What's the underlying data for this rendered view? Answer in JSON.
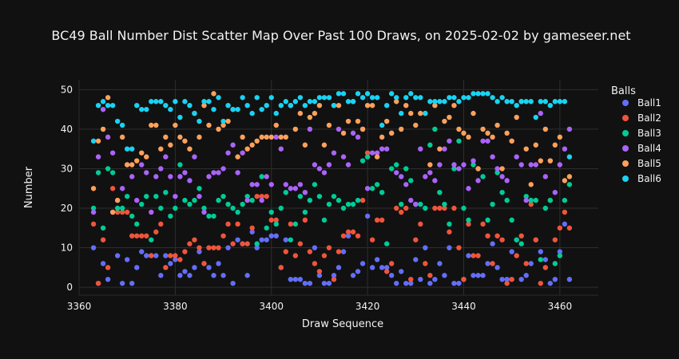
{
  "chart_data": {
    "type": "scatter",
    "title": "BC49 Ball Number Dist Scatter Map Over Past 100 Draws, on 2025-02-02 by gameseer.net",
    "xlabel": "Draw Sequence",
    "ylabel": "Number",
    "xlim": [
      3360,
      3468
    ],
    "ylim": [
      -2,
      52.5
    ],
    "xticks": [
      3360,
      3380,
      3400,
      3420,
      3440,
      3460
    ],
    "yticks": [
      0,
      10,
      20,
      30,
      40,
      50
    ],
    "grid": true,
    "legend_title": "Balls",
    "legend_position": "right",
    "draw_start": 3363,
    "series": [
      {
        "name": "Ball1",
        "color": "#636efa",
        "values": [
          10,
          1,
          6,
          2,
          19,
          8,
          1,
          7,
          1,
          5,
          9,
          8,
          8,
          8,
          3,
          8,
          6,
          7,
          3,
          4,
          3,
          5,
          9,
          6,
          5,
          3,
          6,
          3,
          10,
          1,
          12,
          11,
          3,
          14,
          10,
          12,
          12,
          13,
          13,
          5,
          12,
          2,
          2,
          2,
          1,
          1,
          10,
          3,
          1,
          1,
          3,
          5,
          9,
          13,
          3,
          4,
          6,
          18,
          5,
          7,
          5,
          5,
          3,
          1,
          4,
          1,
          1,
          7,
          2,
          10,
          1,
          2,
          6,
          3,
          10,
          1,
          1,
          2,
          8,
          3,
          3,
          3,
          6,
          11,
          5,
          2,
          2,
          9,
          12,
          2,
          3,
          6,
          12,
          9,
          7,
          1,
          2,
          9,
          16,
          2
        ]
      },
      {
        "name": "Ball2",
        "color": "#ef553b",
        "values": [
          16,
          1,
          12,
          5,
          25,
          19,
          19,
          19,
          13,
          13,
          13,
          13,
          8,
          14,
          16,
          5,
          8,
          8,
          7,
          9,
          11,
          12,
          10,
          6,
          10,
          10,
          10,
          13,
          16,
          11,
          16,
          11,
          11,
          15,
          23,
          23,
          23,
          17,
          17,
          5,
          9,
          16,
          8,
          11,
          17,
          9,
          6,
          4,
          8,
          10,
          2,
          9,
          13,
          14,
          14,
          13,
          22,
          34,
          12,
          17,
          17,
          4,
          6,
          20,
          19,
          20,
          2,
          12,
          16,
          6,
          3,
          20,
          20,
          20,
          14,
          20,
          10,
          2,
          16,
          8,
          8,
          16,
          13,
          6,
          13,
          12,
          1,
          2,
          8,
          13,
          6,
          21,
          12,
          1,
          5,
          22,
          12,
          15,
          19,
          15
        ]
      },
      {
        "name": "Ball3",
        "color": "#00cc96",
        "values": [
          20,
          29,
          15,
          30,
          29,
          20,
          20,
          23,
          18,
          16,
          21,
          23,
          12,
          23,
          20,
          24,
          18,
          20,
          31,
          22,
          21,
          22,
          25,
          20,
          18,
          18,
          22,
          23,
          21,
          20,
          19,
          21,
          23,
          22,
          11,
          28,
          15,
          19,
          16,
          20,
          24,
          12,
          16,
          23,
          19,
          22,
          26,
          23,
          17,
          21,
          23,
          22,
          20,
          21,
          21,
          22,
          32,
          33,
          25,
          26,
          24,
          11,
          30,
          31,
          21,
          30,
          27,
          21,
          21,
          20,
          36,
          40,
          24,
          21,
          16,
          30,
          37,
          20,
          17,
          31,
          30,
          28,
          17,
          21,
          29,
          24,
          22,
          17,
          12,
          11,
          23,
          22,
          22,
          7,
          20,
          22,
          6,
          8,
          22,
          26
        ]
      },
      {
        "name": "Ball4",
        "color": "#ab63fa",
        "values": [
          19,
          33,
          45,
          38,
          34,
          22,
          25,
          31,
          28,
          22,
          31,
          29,
          19,
          28,
          30,
          33,
          28,
          23,
          28,
          29,
          27,
          33,
          23,
          19,
          28,
          29,
          29,
          30,
          34,
          36,
          29,
          34,
          22,
          26,
          26,
          22,
          28,
          26,
          38,
          35,
          26,
          25,
          25,
          26,
          24,
          40,
          31,
          30,
          29,
          31,
          34,
          40,
          33,
          31,
          39,
          38,
          40,
          25,
          34,
          34,
          35,
          35,
          39,
          29,
          28,
          26,
          22,
          21,
          35,
          28,
          29,
          27,
          31,
          35,
          37,
          31,
          30,
          31,
          25,
          32,
          27,
          37,
          37,
          33,
          30,
          28,
          27,
          37,
          33,
          31,
          22,
          31,
          31,
          44,
          28,
          32,
          24,
          31,
          35,
          40
        ]
      },
      {
        "name": "Ball5",
        "color": "#ffa15a",
        "values": [
          25,
          37,
          40,
          48,
          19,
          22,
          38,
          31,
          31,
          32,
          34,
          33,
          41,
          41,
          35,
          38,
          36,
          41,
          38,
          37,
          35,
          44,
          38,
          46,
          41,
          49,
          40,
          41,
          42,
          45,
          33,
          38,
          35,
          36,
          37,
          38,
          38,
          38,
          41,
          38,
          38,
          46,
          40,
          44,
          36,
          43,
          44,
          46,
          36,
          41,
          46,
          46,
          39,
          42,
          47,
          42,
          40,
          46,
          46,
          33,
          38,
          42,
          39,
          47,
          40,
          46,
          44,
          41,
          44,
          44,
          31,
          46,
          35,
          42,
          43,
          46,
          40,
          39,
          38,
          44,
          30,
          40,
          39,
          38,
          41,
          30,
          39,
          37,
          43,
          47,
          35,
          26,
          36,
          32,
          40,
          32,
          36,
          38,
          27,
          28
        ]
      },
      {
        "name": "Ball6",
        "color": "#19d3f3",
        "values": [
          37,
          46,
          47,
          46,
          46,
          42,
          41,
          35,
          35,
          46,
          45,
          45,
          47,
          47,
          47,
          46,
          45,
          47,
          43,
          47,
          46,
          44,
          42,
          47,
          47,
          45,
          48,
          42,
          46,
          45,
          45,
          48,
          46,
          44,
          48,
          45,
          46,
          48,
          44,
          46,
          47,
          46,
          47,
          48,
          46,
          47,
          47,
          48,
          48,
          48,
          46,
          49,
          49,
          47,
          47,
          49,
          48,
          49,
          48,
          48,
          41,
          46,
          49,
          48,
          44,
          48,
          49,
          48,
          48,
          44,
          47,
          47,
          47,
          47,
          48,
          48,
          47,
          48,
          48,
          49,
          49,
          49,
          49,
          48,
          47,
          48,
          47,
          47,
          46,
          47,
          47,
          47,
          43,
          47,
          47,
          46,
          47,
          47,
          47,
          33
        ]
      }
    ]
  }
}
